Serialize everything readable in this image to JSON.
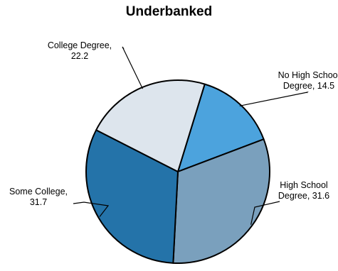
{
  "chart_data": {
    "type": "pie",
    "title": "Underbanked",
    "slices": [
      {
        "label_lines": [
          "No High School",
          "Degree, 14.5"
        ],
        "value": 14.5,
        "color": "#4ca3dd"
      },
      {
        "label_lines": [
          "High School",
          "Degree, 31.6"
        ],
        "value": 31.6,
        "color": "#7aa0bd"
      },
      {
        "label_lines": [
          "Some College,",
          "31.7"
        ],
        "value": 31.7,
        "color": "#2473a9"
      },
      {
        "label_lines": [
          "College Degree,",
          "22.2"
        ],
        "value": 22.2,
        "color": "#dde5ed"
      }
    ],
    "start_angle_deg": 17,
    "direction": "clockwise",
    "legend": "none"
  }
}
